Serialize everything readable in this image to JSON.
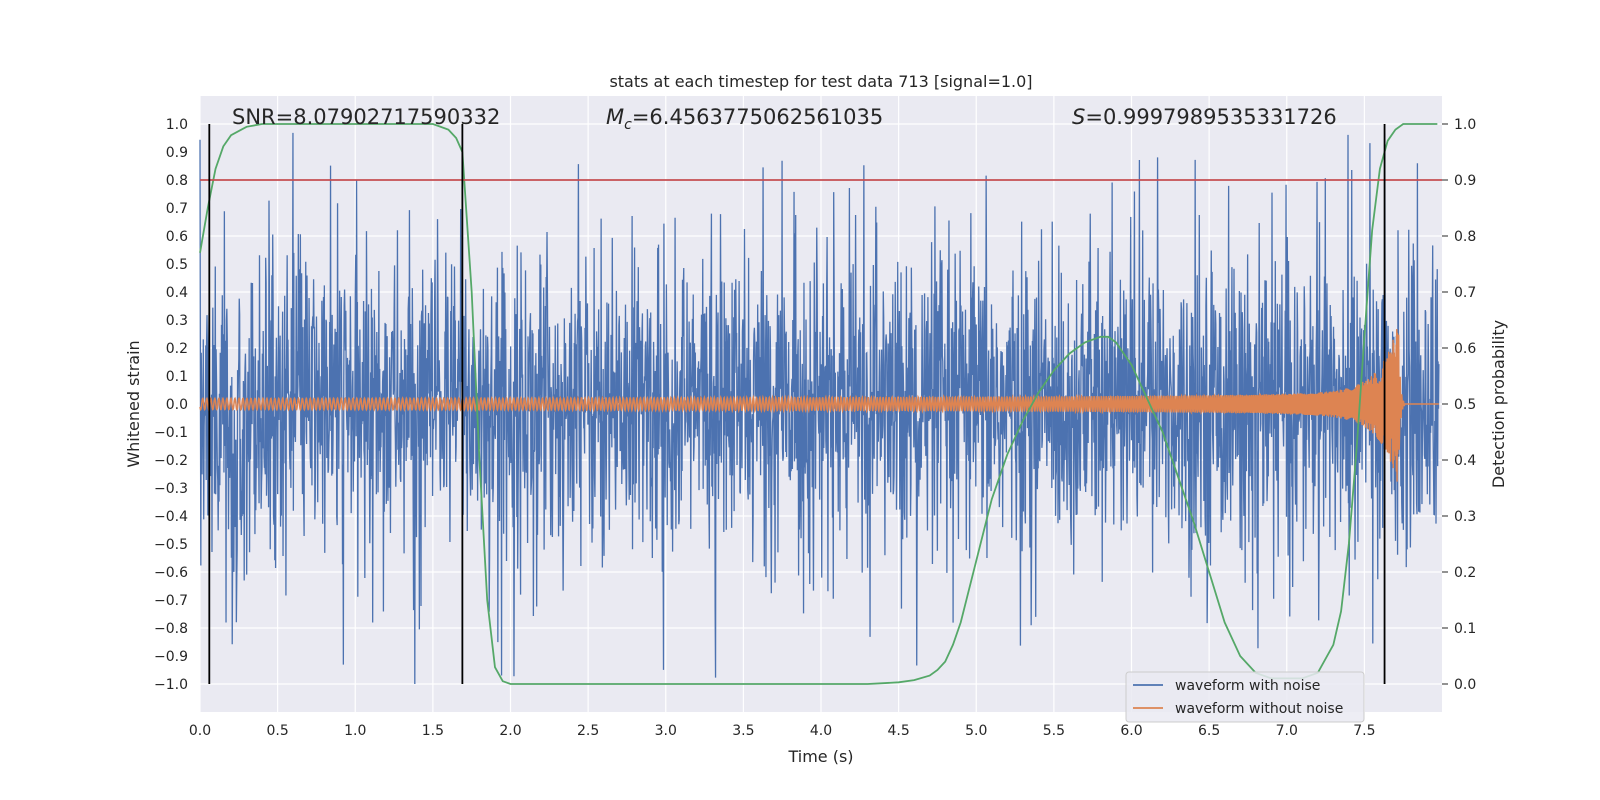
{
  "chart_data": {
    "type": "line",
    "title": "stats at each timestep for test data 713 [signal=1.0]",
    "xlabel": "Time (s)",
    "ylabel": "Whitened strain",
    "y2label": "Detection probability",
    "xlim": [
      0.0,
      8.0
    ],
    "ylim": [
      -1.1,
      1.1
    ],
    "y2lim": [
      -0.05,
      1.05
    ],
    "xticks": [
      "0.0",
      "0.5",
      "1.0",
      "1.5",
      "2.0",
      "2.5",
      "3.0",
      "3.5",
      "4.0",
      "4.5",
      "5.0",
      "5.5",
      "6.0",
      "6.5",
      "7.0",
      "7.5"
    ],
    "yticks": [
      "1.0",
      "0.9",
      "0.8",
      "0.7",
      "0.6",
      "0.5",
      "0.4",
      "0.3",
      "0.2",
      "0.1",
      "0.0",
      "−0.1",
      "−0.2",
      "−0.3",
      "−0.4",
      "−0.5",
      "−0.6",
      "−0.7",
      "−0.8",
      "−0.9",
      "−1.0"
    ],
    "y2ticks": [
      "1.0",
      "0.9",
      "0.8",
      "0.7",
      "0.6",
      "0.5",
      "0.4",
      "0.3",
      "0.2",
      "0.1",
      "0.0"
    ],
    "grid": true,
    "legend_position": "bottom-right",
    "annotations": {
      "snr": "SNR=8.07902717590332",
      "mc_symbol": "M",
      "mc_sub": "c",
      "mc_value": "=6.4563775062561035",
      "s_symbol": "S",
      "s_value": "=0.9997989535331726"
    },
    "threshold": 0.9,
    "vertical_lines_x": [
      0.06,
      1.69,
      7.63
    ],
    "series": [
      {
        "name": "waveform with noise",
        "color": "#4c72b0",
        "description": "Noisy whitened strain, amplitude mostly within ±0.6 with spikes to about 0.98 and down to −1.0"
      },
      {
        "name": "waveform without noise",
        "color": "#dd8452",
        "description": "Chirp signal growing from about ±0.02 to a peak near 0.28 at about 7.7 s, then flat"
      },
      {
        "name": "detection probability",
        "color": "#55a868",
        "x": [
          0.0,
          0.05,
          0.1,
          0.15,
          0.2,
          0.3,
          0.4,
          0.5,
          0.7,
          1.0,
          1.3,
          1.5,
          1.6,
          1.65,
          1.69,
          1.75,
          1.8,
          1.85,
          1.9,
          1.95,
          2.0,
          2.1,
          2.5,
          3.0,
          3.5,
          4.0,
          4.3,
          4.5,
          4.6,
          4.7,
          4.75,
          4.8,
          4.85,
          4.9,
          5.0,
          5.1,
          5.2,
          5.3,
          5.4,
          5.5,
          5.6,
          5.7,
          5.8,
          5.85,
          5.9,
          5.95,
          6.0,
          6.1,
          6.2,
          6.3,
          6.4,
          6.5,
          6.6,
          6.7,
          6.8,
          6.9,
          7.0,
          7.1,
          7.2,
          7.3,
          7.35,
          7.4,
          7.45,
          7.5,
          7.55,
          7.6,
          7.65,
          7.7,
          7.75,
          7.8,
          7.9,
          7.97
        ],
        "values": [
          0.77,
          0.85,
          0.92,
          0.96,
          0.98,
          0.995,
          1.0,
          1.0,
          1.0,
          1.0,
          1.0,
          1.0,
          0.99,
          0.975,
          0.95,
          0.7,
          0.4,
          0.15,
          0.03,
          0.005,
          0.0,
          0.0,
          0.0,
          0.0,
          0.0,
          0.0,
          0.0,
          0.003,
          0.007,
          0.015,
          0.025,
          0.04,
          0.07,
          0.11,
          0.22,
          0.33,
          0.41,
          0.47,
          0.52,
          0.56,
          0.59,
          0.61,
          0.62,
          0.62,
          0.61,
          0.59,
          0.57,
          0.51,
          0.45,
          0.37,
          0.29,
          0.2,
          0.11,
          0.05,
          0.02,
          0.01,
          0.01,
          0.01,
          0.02,
          0.07,
          0.13,
          0.25,
          0.42,
          0.62,
          0.81,
          0.92,
          0.97,
          0.99,
          1.0,
          1.0,
          1.0,
          1.0
        ]
      }
    ]
  }
}
